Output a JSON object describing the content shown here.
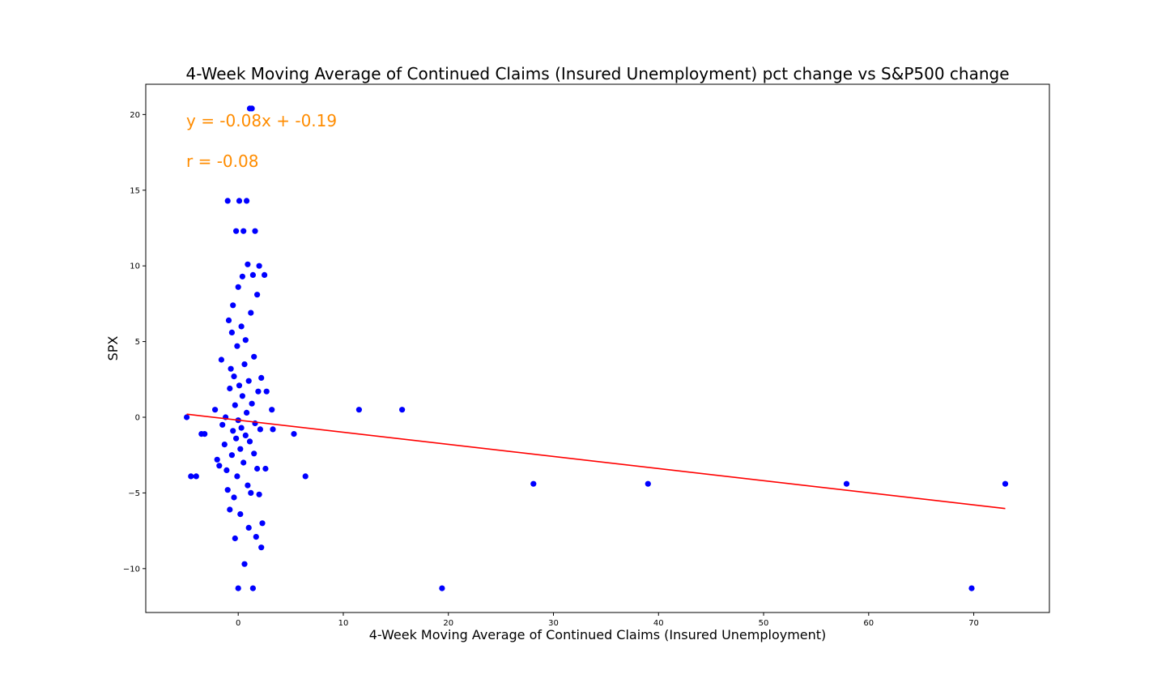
{
  "chart_data": {
    "type": "scatter",
    "title": "4-Week Moving Average of Continued Claims (Insured Unemployment) pct change vs S&P500 change",
    "xlabel": "4-Week Moving Average of Continued Claims (Insured Unemployment)",
    "ylabel": "SPX",
    "xlim": [
      -8.8,
      77.2
    ],
    "ylim": [
      -12.9,
      22.0
    ],
    "xticks": [
      0,
      10,
      20,
      30,
      40,
      50,
      60,
      70
    ],
    "yticks": [
      -10,
      -5,
      0,
      5,
      10,
      15,
      20
    ],
    "grid": false,
    "colors": {
      "points": "#0000ff",
      "fit_line": "#ff0000",
      "annotation": "#ff8c00"
    },
    "annotations": [
      "y = -0.08x + -0.19",
      "r = -0.08"
    ],
    "fit_line": {
      "slope": -0.08,
      "intercept": -0.19,
      "x_range": [
        -4.9,
        73.0
      ]
    },
    "series": [
      {
        "points": [
          [
            -4.9,
            0.0
          ],
          [
            -4.5,
            -3.9
          ],
          [
            -4.0,
            -3.9
          ],
          [
            -3.5,
            -1.1
          ],
          [
            -3.2,
            -1.1
          ],
          [
            -2.2,
            0.5
          ],
          [
            -2.0,
            -2.8
          ],
          [
            -1.8,
            -3.2
          ],
          [
            -1.6,
            3.8
          ],
          [
            -1.5,
            -0.5
          ],
          [
            -1.3,
            -1.8
          ],
          [
            -1.2,
            0.0
          ],
          [
            -1.1,
            -3.5
          ],
          [
            -1.0,
            -4.8
          ],
          [
            -1.0,
            14.3
          ],
          [
            -0.9,
            6.4
          ],
          [
            -0.8,
            1.9
          ],
          [
            -0.8,
            -6.1
          ],
          [
            -0.7,
            3.2
          ],
          [
            -0.6,
            -2.5
          ],
          [
            -0.6,
            5.6
          ],
          [
            -0.5,
            -0.9
          ],
          [
            -0.5,
            7.4
          ],
          [
            -0.4,
            -5.3
          ],
          [
            -0.4,
            2.7
          ],
          [
            -0.3,
            -8.0
          ],
          [
            -0.3,
            0.8
          ],
          [
            -0.2,
            12.3
          ],
          [
            -0.2,
            -1.4
          ],
          [
            -0.1,
            4.7
          ],
          [
            -0.1,
            -3.9
          ],
          [
            0.0,
            8.6
          ],
          [
            0.0,
            -0.2
          ],
          [
            0.0,
            -11.3
          ],
          [
            0.1,
            14.3
          ],
          [
            0.1,
            2.1
          ],
          [
            0.2,
            -2.1
          ],
          [
            0.2,
            -6.4
          ],
          [
            0.3,
            6.0
          ],
          [
            0.3,
            -0.7
          ],
          [
            0.4,
            9.3
          ],
          [
            0.4,
            1.4
          ],
          [
            0.5,
            -3.0
          ],
          [
            0.5,
            12.3
          ],
          [
            0.6,
            3.5
          ],
          [
            0.6,
            -9.7
          ],
          [
            0.7,
            -1.2
          ],
          [
            0.7,
            5.1
          ],
          [
            0.8,
            14.3
          ],
          [
            0.8,
            0.3
          ],
          [
            0.9,
            -4.5
          ],
          [
            0.9,
            10.1
          ],
          [
            1.0,
            -7.3
          ],
          [
            1.0,
            2.4
          ],
          [
            1.1,
            20.4
          ],
          [
            1.1,
            -1.6
          ],
          [
            1.2,
            6.9
          ],
          [
            1.2,
            -5.0
          ],
          [
            1.3,
            20.4
          ],
          [
            1.3,
            0.9
          ],
          [
            1.4,
            -11.3
          ],
          [
            1.4,
            9.4
          ],
          [
            1.5,
            -2.4
          ],
          [
            1.5,
            4.0
          ],
          [
            1.6,
            12.3
          ],
          [
            1.6,
            -0.4
          ],
          [
            1.7,
            -7.9
          ],
          [
            1.8,
            8.1
          ],
          [
            1.8,
            -3.4
          ],
          [
            1.9,
            1.7
          ],
          [
            2.0,
            -5.1
          ],
          [
            2.0,
            10.0
          ],
          [
            2.1,
            -0.8
          ],
          [
            2.2,
            -8.6
          ],
          [
            2.2,
            2.6
          ],
          [
            2.3,
            -7.0
          ],
          [
            2.5,
            9.4
          ],
          [
            2.6,
            -3.4
          ],
          [
            2.7,
            1.7
          ],
          [
            3.2,
            0.5
          ],
          [
            3.3,
            -0.8
          ],
          [
            5.3,
            -1.1
          ],
          [
            6.4,
            -3.9
          ],
          [
            11.5,
            0.5
          ],
          [
            15.6,
            0.5
          ],
          [
            19.4,
            -11.3
          ],
          [
            28.1,
            -4.4
          ],
          [
            39.0,
            -4.4
          ],
          [
            57.9,
            -4.4
          ],
          [
            69.8,
            -11.3
          ],
          [
            73.0,
            -4.4
          ]
        ]
      }
    ]
  }
}
